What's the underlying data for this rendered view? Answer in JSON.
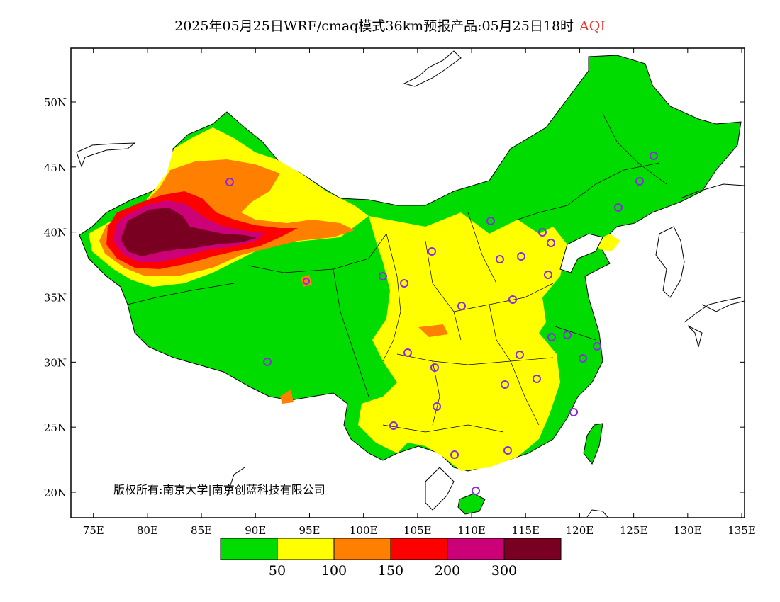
{
  "title": {
    "main": "2025年05月25日WRF/cmaq模式36km预报产品:05月25日18时",
    "variable": "AQI",
    "variable_color": "#e8352e"
  },
  "map": {
    "lon_ticks": [
      "75E",
      "80E",
      "85E",
      "90E",
      "95E",
      "100E",
      "105E",
      "110E",
      "115E",
      "120E",
      "125E",
      "130E",
      "135E"
    ],
    "lat_ticks": [
      "50N",
      "45N",
      "40N",
      "35N",
      "30N",
      "25N",
      "20N"
    ],
    "copyright": "版权所有:南京大学|南京创蓝科技有限公司"
  },
  "legend": {
    "colors": [
      "#00dc00",
      "#ffff00",
      "#ff8000",
      "#ff0000",
      "#cc0077",
      "#7a0022"
    ],
    "labels": [
      "50",
      "100",
      "150",
      "200",
      "300"
    ]
  },
  "stations_color": "#8a2be2"
}
